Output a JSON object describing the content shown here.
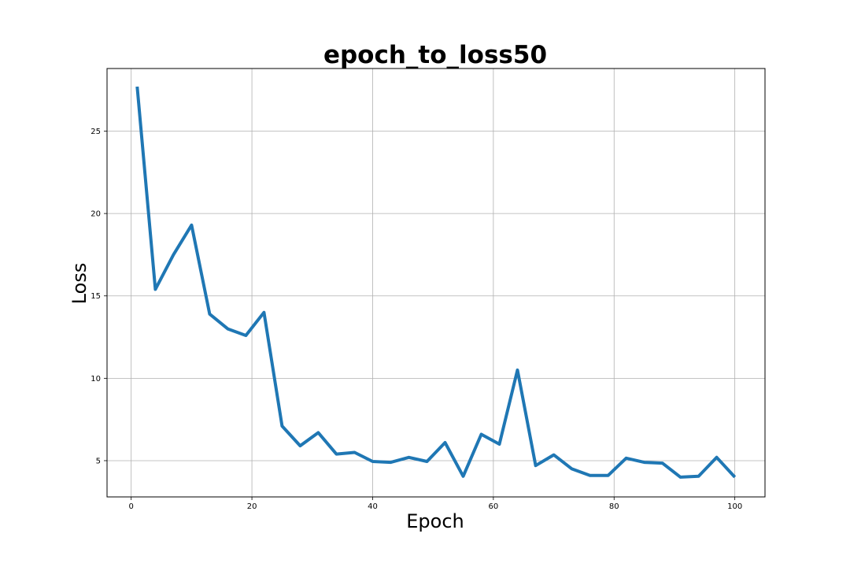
{
  "chart_data": {
    "type": "line",
    "title": "epoch_to_loss50",
    "xlabel": "Epoch",
    "ylabel": "Loss",
    "xlim": [
      -4,
      105
    ],
    "ylim": [
      2.8,
      28.8
    ],
    "xticks": [
      0,
      20,
      40,
      60,
      80,
      100
    ],
    "yticks": [
      5,
      10,
      15,
      20,
      25
    ],
    "grid": true,
    "series": [
      {
        "color": "#1f77b4",
        "x": [
          1,
          4,
          7,
          10,
          13,
          16,
          19,
          22,
          25,
          28,
          31,
          34,
          37,
          40,
          43,
          46,
          49,
          52,
          55,
          58,
          61,
          64,
          67,
          70,
          73,
          76,
          79,
          82,
          85,
          88,
          91,
          94,
          97,
          100
        ],
        "y": [
          27.7,
          15.4,
          17.5,
          19.3,
          13.9,
          13.0,
          12.6,
          14.0,
          7.1,
          5.9,
          6.7,
          5.4,
          5.5,
          4.95,
          4.9,
          5.2,
          4.95,
          6.1,
          4.05,
          6.6,
          6.0,
          10.5,
          4.7,
          5.35,
          4.5,
          4.1,
          4.1,
          5.15,
          4.9,
          4.85,
          4.0,
          4.05,
          5.2,
          4.0
        ]
      }
    ]
  }
}
